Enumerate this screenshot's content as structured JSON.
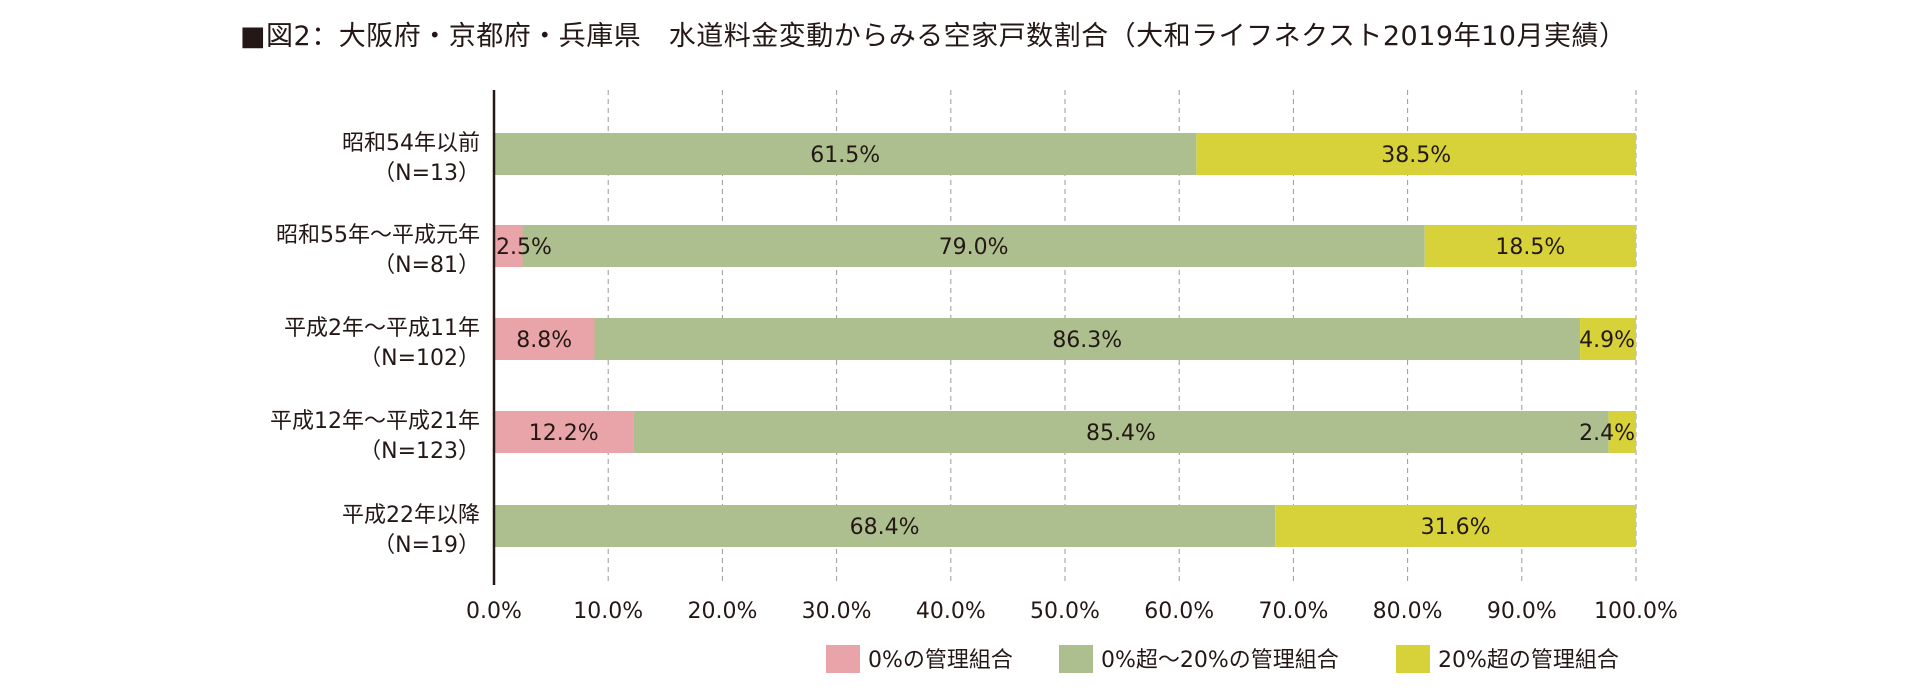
{
  "title": "■図2：大阪府・京都府・兵庫県　水道料金変動からみる空家戸数割合（大和ライフネクスト2019年10月実績）",
  "chart_data": {
    "type": "bar",
    "orientation": "horizontal",
    "stacked": "percent",
    "title": "■図2：大阪府・京都府・兵庫県　水道料金変動からみる空家戸数割合（大和ライフネクスト2019年10月実績）",
    "categories": [
      {
        "line1": "昭和54年以前",
        "line2": "（N=13）"
      },
      {
        "line1": "昭和55年～平成元年",
        "line2": "（N=81）"
      },
      {
        "line1": "平成2年～平成11年",
        "line2": "（N=102）"
      },
      {
        "line1": "平成12年～平成21年",
        "line2": "（N=123）"
      },
      {
        "line1": "平成22年以降",
        "line2": "（N=19）"
      }
    ],
    "series": [
      {
        "name": "0%の管理組合",
        "color": "#e8a4a8",
        "values": [
          0,
          2.5,
          8.8,
          12.2,
          0
        ],
        "labels": [
          "",
          "2.5%",
          "8.8%",
          "12.2%",
          ""
        ]
      },
      {
        "name": "0%超～20%の管理組合",
        "color": "#adbf8e",
        "values": [
          61.5,
          79.0,
          86.3,
          85.4,
          68.4
        ],
        "labels": [
          "61.5%",
          "79.0%",
          "86.3%",
          "85.4%",
          "68.4%"
        ]
      },
      {
        "name": "20%超の管理組合",
        "color": "#d7d23a",
        "values": [
          38.5,
          18.5,
          4.9,
          2.4,
          31.6
        ],
        "labels": [
          "38.5%",
          "18.5%",
          "4.9%",
          "2.4%",
          "31.6%"
        ]
      }
    ],
    "xlim": [
      0,
      100
    ],
    "xticks": [
      0,
      10,
      20,
      30,
      40,
      50,
      60,
      70,
      80,
      90,
      100
    ],
    "xtick_labels": [
      "0.0%",
      "10.0%",
      "20.0%",
      "30.0%",
      "40.0%",
      "50.0%",
      "60.0%",
      "70.0%",
      "80.0%",
      "90.0%",
      "100.0%"
    ],
    "grid": "vertical-dashed",
    "legend_position": "bottom-right"
  }
}
